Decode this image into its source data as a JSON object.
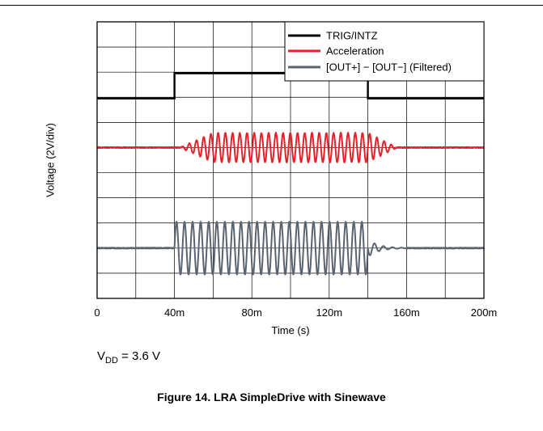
{
  "chart_data": {
    "type": "line",
    "title": "",
    "xlabel": "Time (s)",
    "ylabel": "Voltage (2V/div)",
    "xlim": [
      0,
      0.2
    ],
    "x_ticks": [
      0,
      0.04,
      0.08,
      0.12,
      0.16,
      0.2
    ],
    "x_tick_labels": [
      "0",
      "40m",
      "80m",
      "120m",
      "160m",
      "200m"
    ],
    "x_divisions": 10,
    "y_divisions": 11,
    "y_volts_per_div": 2,
    "grid": true,
    "legend_position": "top-right",
    "series": [
      {
        "name": "TRIG/INTZ",
        "color": "#000000",
        "kind": "step",
        "baseline_div": 7.95,
        "high_div": 8.95,
        "x": [
          0,
          0.04,
          0.04,
          0.14,
          0.14,
          0.2
        ],
        "level": [
          "low",
          "low",
          "high",
          "high",
          "low",
          "low"
        ]
      },
      {
        "name": "Acceleration",
        "color": "#e8202a",
        "kind": "burst-sine",
        "baseline_div": 6.0,
        "burst_start": 0.043,
        "burst_end": 0.155,
        "ramp_up_end": 0.06,
        "decay_start": 0.14,
        "peak_amplitude_div": 0.58,
        "cycles": 26
      },
      {
        "name": "[OUT+] − [OUT−] (Filtered)",
        "color": "#5a6470",
        "kind": "burst-sine",
        "baseline_div": 2.0,
        "burst_start": 0.04,
        "burst_end": 0.14,
        "peak_amplitude_div": 1.05,
        "cycles": 24,
        "ringdown_end": 0.16,
        "ringdown_amplitude_div": 0.35
      }
    ]
  },
  "condition": {
    "symbol": "V",
    "subscript": "DD",
    "value": " = 3.6 V"
  },
  "caption": "Figure 14. LRA SimpleDrive with Sinewave"
}
